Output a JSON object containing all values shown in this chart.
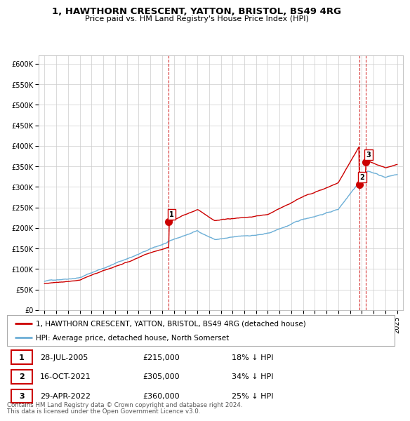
{
  "title": "1, HAWTHORN CRESCENT, YATTON, BRISTOL, BS49 4RG",
  "subtitle": "Price paid vs. HM Land Registry's House Price Index (HPI)",
  "legend_label_red": "1, HAWTHORN CRESCENT, YATTON, BRISTOL, BS49 4RG (detached house)",
  "legend_label_blue": "HPI: Average price, detached house, North Somerset",
  "transactions": [
    {
      "num": 1,
      "date": "28-JUL-2005",
      "price": 215000,
      "hpi_diff": "18% ↓ HPI",
      "x": 2005.57
    },
    {
      "num": 2,
      "date": "16-OCT-2021",
      "price": 305000,
      "hpi_diff": "34% ↓ HPI",
      "x": 2021.79
    },
    {
      "num": 3,
      "date": "29-APR-2022",
      "price": 360000,
      "hpi_diff": "25% ↓ HPI",
      "x": 2022.33
    }
  ],
  "footer": "Contains HM Land Registry data © Crown copyright and database right 2024.\nThis data is licensed under the Open Government Licence v3.0.",
  "ylim": [
    0,
    620000
  ],
  "yticks": [
    0,
    50000,
    100000,
    150000,
    200000,
    250000,
    300000,
    350000,
    400000,
    450000,
    500000,
    550000,
    600000
  ],
  "ytick_labels": [
    "£0",
    "£50K",
    "£100K",
    "£150K",
    "£200K",
    "£250K",
    "£300K",
    "£350K",
    "£400K",
    "£450K",
    "£500K",
    "£550K",
    "£600K"
  ],
  "xlim": [
    1994.5,
    2025.5
  ],
  "xticks": [
    1995,
    1996,
    1997,
    1998,
    1999,
    2000,
    2001,
    2002,
    2003,
    2004,
    2005,
    2006,
    2007,
    2008,
    2009,
    2010,
    2011,
    2012,
    2013,
    2014,
    2015,
    2016,
    2017,
    2018,
    2019,
    2020,
    2021,
    2022,
    2023,
    2024,
    2025
  ],
  "hpi_color": "#6baed6",
  "price_color": "#cc0000",
  "dashed_line_color": "#cc0000",
  "marker_color": "#cc0000",
  "background_color": "#ffffff",
  "grid_color": "#cccccc",
  "marker_prices": [
    215000,
    305000,
    360000
  ],
  "transactions_display": [
    [
      "1",
      "28-JUL-2005",
      "£215,000",
      "18% ↓ HPI"
    ],
    [
      "2",
      "16-OCT-2021",
      "£305,000",
      "34% ↓ HPI"
    ],
    [
      "3",
      "29-APR-2022",
      "£360,000",
      "25% ↓ HPI"
    ]
  ]
}
